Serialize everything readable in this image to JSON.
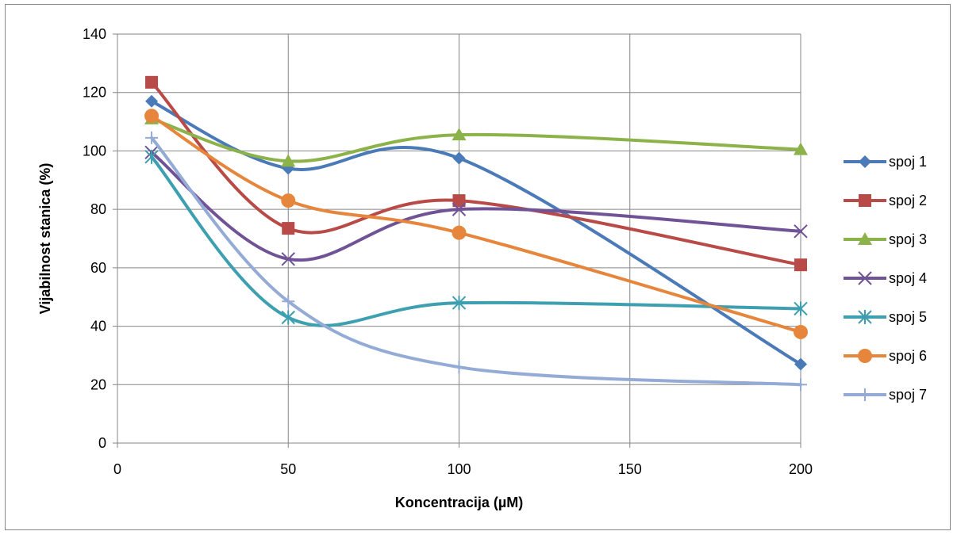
{
  "chart_data": {
    "type": "line",
    "smooth": true,
    "title": "",
    "xlabel": "Koncentracija (µM)",
    "ylabel": "Vijabilnost stanica (%)",
    "xlim": [
      0,
      200
    ],
    "ylim": [
      0,
      140
    ],
    "xticks": [
      0,
      50,
      100,
      150,
      200
    ],
    "yticks": [
      0,
      20,
      40,
      60,
      80,
      100,
      120,
      140
    ],
    "grid": true,
    "legend_position": "right",
    "x": [
      10,
      50,
      100,
      200
    ],
    "series": [
      {
        "name": "spoj 1",
        "values": [
          117,
          94,
          97.5,
          27
        ],
        "color": "#4a7ab8",
        "marker": "diamond"
      },
      {
        "name": "spoj 2",
        "values": [
          123.5,
          73.5,
          83,
          61
        ],
        "color": "#b84a47",
        "marker": "square"
      },
      {
        "name": "spoj 3",
        "values": [
          111,
          96.5,
          105.5,
          100.5
        ],
        "color": "#8cb24a",
        "marker": "triangle"
      },
      {
        "name": "spoj 4",
        "values": [
          99.5,
          63,
          80,
          72.5
        ],
        "color": "#6f5396",
        "marker": "x"
      },
      {
        "name": "spoj 5",
        "values": [
          98,
          43,
          48,
          46
        ],
        "color": "#3d9fb0",
        "marker": "asterisk"
      },
      {
        "name": "spoj 6",
        "values": [
          112,
          83,
          72,
          38
        ],
        "color": "#e6863c",
        "marker": "circle"
      },
      {
        "name": "spoj 7",
        "values": [
          104.5,
          48.5,
          26,
          20
        ],
        "color": "#94abd6",
        "marker": "plus"
      }
    ]
  }
}
